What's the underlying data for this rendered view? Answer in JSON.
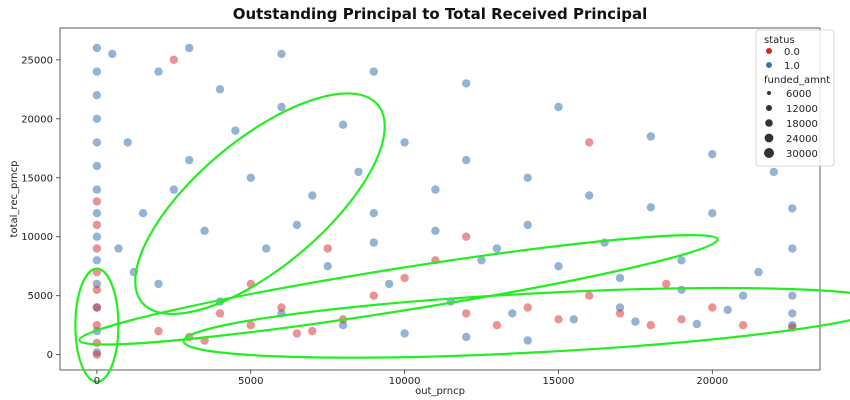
{
  "chart_data": {
    "type": "scatter",
    "title": "Outstanding Principal to Total Received Principal",
    "xlabel": "out_prncp",
    "ylabel": "total_rec_prncp",
    "xlim": [
      -1200,
      23500
    ],
    "ylim": [
      -1300,
      27700
    ],
    "x_ticks": [
      0,
      5000,
      10000,
      15000,
      20000
    ],
    "y_ticks": [
      0,
      5000,
      10000,
      15000,
      20000,
      25000
    ],
    "grid": false,
    "legend": {
      "placement": "top-right",
      "hue_title": "status",
      "hue_entries": [
        {
          "label": "0.0",
          "color": "#d62728"
        },
        {
          "label": "1.0",
          "color": "#3a76b0"
        }
      ],
      "size_title": "funded_amnt",
      "size_entries": [
        {
          "label": "6000",
          "value": 6000
        },
        {
          "label": "12000",
          "value": 12000
        },
        {
          "label": "18000",
          "value": 18000
        },
        {
          "label": "24000",
          "value": 24000
        },
        {
          "label": "30000",
          "value": 30000
        }
      ]
    },
    "series": [
      {
        "name": "1.0",
        "color": "#3a76b0",
        "points": [
          [
            0,
            200
          ],
          [
            0,
            2000
          ],
          [
            0,
            4000
          ],
          [
            0,
            6000
          ],
          [
            0,
            8000
          ],
          [
            0,
            10000
          ],
          [
            0,
            12000
          ],
          [
            0,
            14000
          ],
          [
            0,
            16000
          ],
          [
            0,
            18000
          ],
          [
            0,
            20000
          ],
          [
            0,
            22000
          ],
          [
            0,
            24000
          ],
          [
            0,
            26000
          ],
          [
            500,
            25500
          ],
          [
            2000,
            24000
          ],
          [
            4000,
            22500
          ],
          [
            6000,
            21000
          ],
          [
            8000,
            19500
          ],
          [
            10000,
            18000
          ],
          [
            12000,
            16500
          ],
          [
            14000,
            15000
          ],
          [
            16000,
            13500
          ],
          [
            18000,
            12500
          ],
          [
            20000,
            12000
          ],
          [
            22600,
            12400
          ],
          [
            1000,
            18000
          ],
          [
            3000,
            16500
          ],
          [
            5000,
            15000
          ],
          [
            7000,
            13500
          ],
          [
            9000,
            12000
          ],
          [
            11000,
            10500
          ],
          [
            13000,
            9000
          ],
          [
            15000,
            7500
          ],
          [
            17000,
            6500
          ],
          [
            19000,
            5500
          ],
          [
            21000,
            5000
          ],
          [
            22600,
            5000
          ],
          [
            1500,
            12000
          ],
          [
            3500,
            10500
          ],
          [
            5500,
            9000
          ],
          [
            7500,
            7500
          ],
          [
            9500,
            6000
          ],
          [
            11500,
            4500
          ],
          [
            13500,
            3500
          ],
          [
            15500,
            3000
          ],
          [
            17500,
            2800
          ],
          [
            19500,
            2600
          ],
          [
            22600,
            2500
          ],
          [
            2000,
            6000
          ],
          [
            4000,
            4500
          ],
          [
            6000,
            3500
          ],
          [
            8000,
            2500
          ],
          [
            10000,
            1800
          ],
          [
            12000,
            1500
          ],
          [
            14000,
            1200
          ],
          [
            3000,
            26000
          ],
          [
            6000,
            25500
          ],
          [
            9000,
            24000
          ],
          [
            12000,
            23000
          ],
          [
            15000,
            21000
          ],
          [
            18000,
            18500
          ],
          [
            20000,
            17000
          ],
          [
            22000,
            15500
          ],
          [
            700,
            9000
          ],
          [
            1200,
            7000
          ],
          [
            2500,
            14000
          ],
          [
            4500,
            19000
          ],
          [
            8500,
            15500
          ],
          [
            11000,
            14000
          ],
          [
            14000,
            11000
          ],
          [
            16500,
            9500
          ],
          [
            19000,
            8000
          ],
          [
            21500,
            7000
          ],
          [
            22600,
            9000
          ],
          [
            6500,
            11000
          ],
          [
            9000,
            9500
          ],
          [
            12500,
            8000
          ],
          [
            17000,
            4000
          ],
          [
            20500,
            3800
          ],
          [
            22600,
            3500
          ]
        ]
      },
      {
        "name": "0.0",
        "color": "#d62728",
        "points": [
          [
            0,
            0
          ],
          [
            0,
            1000
          ],
          [
            0,
            2500
          ],
          [
            0,
            4000
          ],
          [
            0,
            5500
          ],
          [
            0,
            7000
          ],
          [
            0,
            9000
          ],
          [
            0,
            11000
          ],
          [
            0,
            13000
          ],
          [
            2000,
            2000
          ],
          [
            3000,
            1500
          ],
          [
            4000,
            3500
          ],
          [
            5000,
            2500
          ],
          [
            6000,
            4000
          ],
          [
            7000,
            2000
          ],
          [
            8000,
            3000
          ],
          [
            9000,
            5000
          ],
          [
            10000,
            6500
          ],
          [
            11000,
            8000
          ],
          [
            12000,
            3500
          ],
          [
            13000,
            2500
          ],
          [
            14000,
            4000
          ],
          [
            15000,
            3000
          ],
          [
            16000,
            5000
          ],
          [
            17000,
            3500
          ],
          [
            18000,
            2500
          ],
          [
            19000,
            3000
          ],
          [
            20000,
            4000
          ],
          [
            21000,
            2500
          ],
          [
            22600,
            2300
          ],
          [
            5000,
            6000
          ],
          [
            7500,
            9000
          ],
          [
            3500,
            1200
          ],
          [
            6500,
            1800
          ],
          [
            12000,
            10000
          ],
          [
            18500,
            6000
          ],
          [
            2500,
            25000
          ],
          [
            16000,
            18000
          ]
        ]
      }
    ],
    "annotations": [
      {
        "type": "ellipse",
        "color": "#22ee22",
        "cx": 0,
        "cy": 2500,
        "rx": 700,
        "ry": 4800,
        "rotate": 0
      },
      {
        "type": "ellipse",
        "color": "#22ee22",
        "cx": 5300,
        "cy": 12800,
        "rx": 5000,
        "ry": 5400,
        "rotate": -40
      },
      {
        "type": "ellipse",
        "color": "#22ee22",
        "cx": 9800,
        "cy": 5500,
        "rx": 10500,
        "ry": 1800,
        "rotate": -9
      },
      {
        "type": "ellipse",
        "color": "#22ee22",
        "cx": 14300,
        "cy": 2700,
        "rx": 11500,
        "ry": 2500,
        "rotate": -3
      }
    ]
  }
}
